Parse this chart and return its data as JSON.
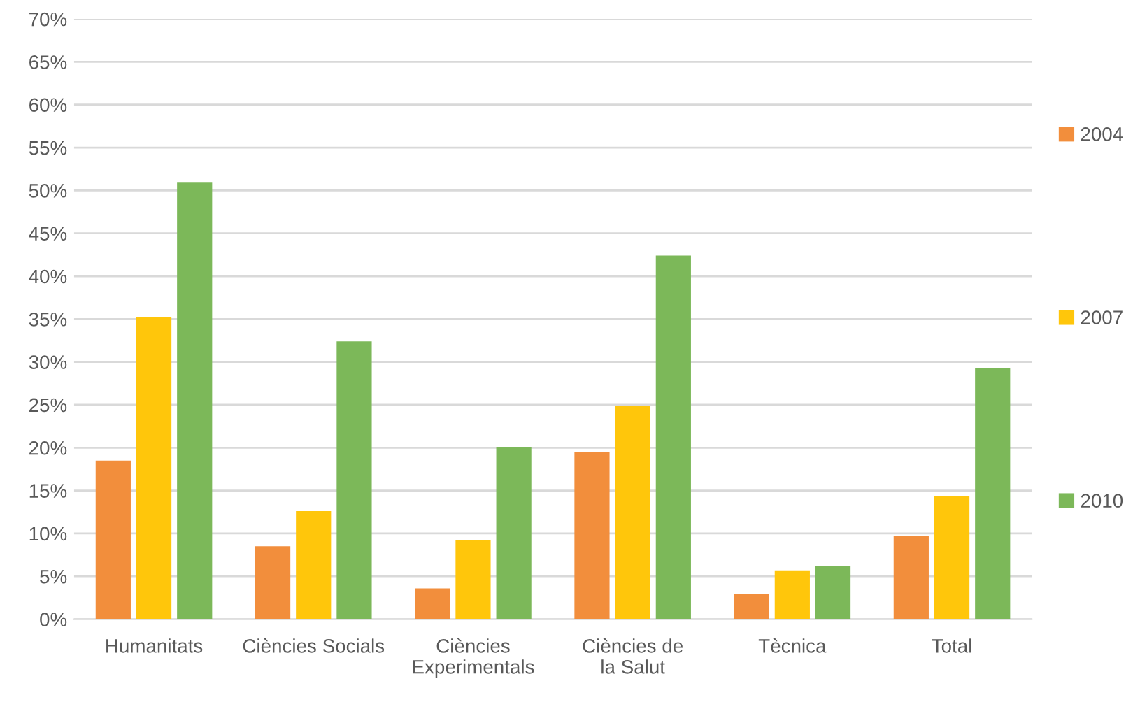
{
  "chart_data": {
    "type": "bar",
    "categories": [
      "Humanitats",
      "Ciències Socials",
      "Ciències Experimentals",
      "Ciències de la Salut",
      "Tècnica",
      "Total"
    ],
    "series": [
      {
        "name": "2004",
        "color": "#f28e3c",
        "values": [
          18.5,
          8.5,
          3.6,
          19.5,
          2.9,
          9.7
        ]
      },
      {
        "name": "2007",
        "color": "#ffc60b",
        "values": [
          35.2,
          12.6,
          9.2,
          24.9,
          5.7,
          14.4
        ]
      },
      {
        "name": "2010",
        "color": "#7cb859",
        "values": [
          50.9,
          32.4,
          20.1,
          42.4,
          6.2,
          29.3
        ]
      }
    ],
    "ylim": [
      0,
      70
    ],
    "yticks": [
      {
        "value": 0,
        "label": "0%"
      },
      {
        "value": 5,
        "label": "5%"
      },
      {
        "value": 10,
        "label": "10%"
      },
      {
        "value": 15,
        "label": "15%"
      },
      {
        "value": 20,
        "label": "20%"
      },
      {
        "value": 25,
        "label": "25%"
      },
      {
        "value": 30,
        "label": "30%"
      },
      {
        "value": 35,
        "label": "35%"
      },
      {
        "value": 40,
        "label": "40%"
      },
      {
        "value": 45,
        "label": "45%"
      },
      {
        "value": 50,
        "label": "50%"
      },
      {
        "value": 55,
        "label": "55%"
      },
      {
        "value": 60,
        "label": "60%"
      },
      {
        "value": 65,
        "label": "65%"
      },
      {
        "value": 70,
        "label": "70%"
      }
    ],
    "grid": "y",
    "legend": "right"
  }
}
